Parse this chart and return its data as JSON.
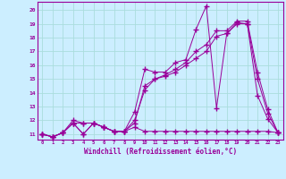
{
  "xlabel": "Windchill (Refroidissement éolien,°C)",
  "x_values": [
    0,
    1,
    2,
    3,
    4,
    5,
    6,
    7,
    8,
    9,
    10,
    11,
    12,
    13,
    14,
    15,
    16,
    17,
    18,
    19,
    20,
    21,
    22,
    23
  ],
  "line1_y": [
    11.0,
    10.8,
    11.1,
    11.8,
    11.0,
    11.8,
    11.5,
    11.2,
    11.2,
    11.5,
    11.2,
    11.2,
    11.2,
    11.2,
    11.2,
    11.2,
    11.2,
    11.2,
    11.2,
    11.2,
    11.2,
    11.2,
    11.2,
    11.1
  ],
  "line2_y": [
    11.0,
    10.8,
    11.1,
    11.8,
    11.0,
    11.8,
    11.5,
    11.2,
    11.2,
    12.6,
    15.7,
    15.5,
    15.5,
    16.2,
    16.4,
    18.6,
    20.3,
    12.9,
    18.3,
    19.1,
    19.0,
    13.8,
    12.1,
    11.1
  ],
  "line3_y": [
    11.0,
    10.8,
    11.1,
    11.8,
    11.8,
    11.8,
    11.5,
    11.2,
    11.2,
    12.0,
    14.2,
    15.0,
    15.2,
    15.5,
    16.0,
    16.5,
    17.0,
    18.1,
    18.3,
    19.0,
    19.0,
    15.0,
    12.5,
    11.1
  ],
  "line4_y": [
    11.0,
    10.8,
    11.1,
    12.0,
    11.8,
    11.8,
    11.5,
    11.2,
    11.2,
    11.8,
    14.5,
    15.0,
    15.3,
    15.7,
    16.2,
    17.0,
    17.5,
    18.5,
    18.5,
    19.2,
    19.2,
    15.5,
    12.8,
    11.1
  ],
  "color": "#990099",
  "bg_color": "#cceeff",
  "grid_color": "#aadddd",
  "ylim": [
    10.6,
    20.6
  ],
  "xlim": [
    -0.5,
    23.5
  ],
  "yticks": [
    11,
    12,
    13,
    14,
    15,
    16,
    17,
    18,
    19,
    20
  ],
  "xticks": [
    0,
    1,
    2,
    3,
    4,
    5,
    6,
    7,
    8,
    9,
    10,
    11,
    12,
    13,
    14,
    15,
    16,
    17,
    18,
    19,
    20,
    21,
    22,
    23
  ]
}
